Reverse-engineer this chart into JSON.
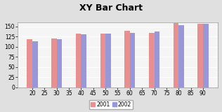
{
  "title": "XY Bar Chart",
  "x_positions": [
    20,
    30,
    40,
    50,
    60,
    70,
    80,
    90
  ],
  "values_2001": [
    118,
    120,
    133,
    133,
    140,
    135,
    158,
    157
  ],
  "values_2002": [
    114,
    118,
    130,
    132,
    135,
    138,
    153,
    157
  ],
  "color_2001": "#e89090",
  "color_2002": "#9898d8",
  "xlim": [
    14,
    96
  ],
  "ylim": [
    0,
    160
  ],
  "yticks": [
    0,
    25,
    50,
    75,
    100,
    125,
    150
  ],
  "xticks": [
    20,
    25,
    30,
    35,
    40,
    45,
    50,
    55,
    60,
    65,
    70,
    75,
    80,
    85,
    90
  ],
  "bar_width": 2.2,
  "background_color": "#e0e0e0",
  "plot_bg_color": "#f5f5f5",
  "legend_labels": [
    "2001",
    "2002"
  ],
  "title_fontsize": 9,
  "tick_fontsize": 5.5
}
